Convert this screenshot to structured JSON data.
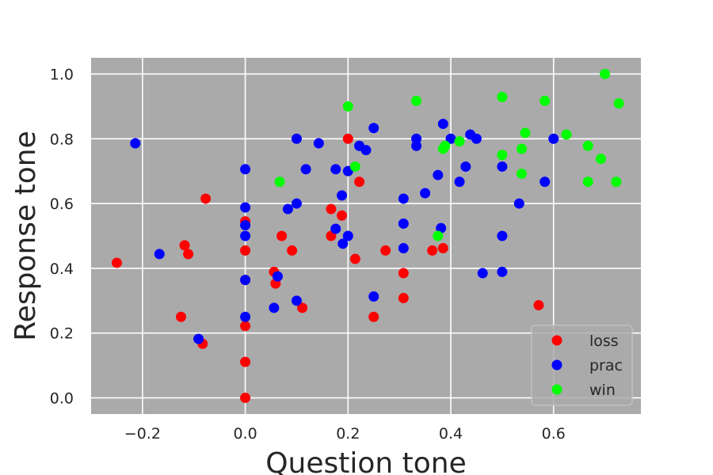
{
  "chart_data": {
    "type": "scatter",
    "xlabel": "Question tone",
    "ylabel": "Response tone",
    "xlim": [
      -0.3,
      0.77
    ],
    "ylim": [
      -0.05,
      1.05
    ],
    "xticks": [
      -0.2,
      0.0,
      0.2,
      0.4,
      0.6
    ],
    "xtick_labels": [
      "−0.2",
      "0.0",
      "0.2",
      "0.4",
      "0.6"
    ],
    "yticks": [
      0.0,
      0.2,
      0.4,
      0.6,
      0.8,
      1.0
    ],
    "ytick_labels": [
      "0.0",
      "0.2",
      "0.4",
      "0.6",
      "0.8",
      "1.0"
    ],
    "grid": true,
    "plot_background": "#aaaaaa",
    "legend_position": "bottom-right",
    "series": [
      {
        "name": "loss",
        "color": "#ff0000",
        "points": [
          [
            -0.25,
            0.417
          ],
          [
            -0.077,
            0.615
          ],
          [
            -0.118,
            0.471
          ],
          [
            -0.111,
            0.444
          ],
          [
            -0.125,
            0.25
          ],
          [
            -0.083,
            0.167
          ],
          [
            0.0,
            0.545
          ],
          [
            0.0,
            0.455
          ],
          [
            0.0,
            0.364
          ],
          [
            0.0,
            0.222
          ],
          [
            0.0,
            0.111
          ],
          [
            0.0,
            0.0
          ],
          [
            0.071,
            0.5
          ],
          [
            0.091,
            0.455
          ],
          [
            0.056,
            0.389
          ],
          [
            0.059,
            0.353
          ],
          [
            0.111,
            0.278
          ],
          [
            0.167,
            0.583
          ],
          [
            0.188,
            0.563
          ],
          [
            0.167,
            0.5
          ],
          [
            0.2,
            0.8
          ],
          [
            0.222,
            0.667
          ],
          [
            0.214,
            0.429
          ],
          [
            0.273,
            0.455
          ],
          [
            0.25,
            0.25
          ],
          [
            0.308,
            0.385
          ],
          [
            0.308,
            0.308
          ],
          [
            0.364,
            0.455
          ],
          [
            0.385,
            0.462
          ],
          [
            0.571,
            0.286
          ]
        ]
      },
      {
        "name": "prac",
        "color": "#0000ff",
        "points": [
          [
            -0.214,
            0.786
          ],
          [
            -0.167,
            0.444
          ],
          [
            -0.091,
            0.182
          ],
          [
            0.0,
            0.706
          ],
          [
            0.0,
            0.588
          ],
          [
            0.0,
            0.533
          ],
          [
            0.0,
            0.5
          ],
          [
            0.0,
            0.25
          ],
          [
            0.0,
            0.364
          ],
          [
            0.063,
            0.375
          ],
          [
            0.056,
            0.278
          ],
          [
            0.1,
            0.8
          ],
          [
            0.143,
            0.786
          ],
          [
            0.118,
            0.706
          ],
          [
            0.083,
            0.583
          ],
          [
            0.1,
            0.6
          ],
          [
            0.1,
            0.3
          ],
          [
            0.176,
            0.706
          ],
          [
            0.2,
            0.7
          ],
          [
            0.188,
            0.625
          ],
          [
            0.176,
            0.522
          ],
          [
            0.2,
            0.5
          ],
          [
            0.19,
            0.476
          ],
          [
            0.222,
            0.778
          ],
          [
            0.235,
            0.765
          ],
          [
            0.25,
            0.833
          ],
          [
            0.25,
            0.313
          ],
          [
            0.333,
            0.8
          ],
          [
            0.333,
            0.778
          ],
          [
            0.308,
            0.615
          ],
          [
            0.308,
            0.538
          ],
          [
            0.308,
            0.462
          ],
          [
            0.35,
            0.632
          ],
          [
            0.375,
            0.688
          ],
          [
            0.381,
            0.524
          ],
          [
            0.385,
            0.846
          ],
          [
            0.4,
            0.8
          ],
          [
            0.429,
            0.714
          ],
          [
            0.417,
            0.667
          ],
          [
            0.438,
            0.813
          ],
          [
            0.45,
            0.8
          ],
          [
            0.462,
            0.385
          ],
          [
            0.5,
            0.714
          ],
          [
            0.5,
            0.5
          ],
          [
            0.5,
            0.389
          ],
          [
            0.533,
            0.6
          ],
          [
            0.583,
            0.667
          ],
          [
            0.6,
            0.8
          ]
        ]
      },
      {
        "name": "win",
        "color": "#00ff00",
        "points": [
          [
            0.067,
            0.667
          ],
          [
            0.2,
            0.9
          ],
          [
            0.214,
            0.714
          ],
          [
            0.333,
            0.917
          ],
          [
            0.375,
            0.5
          ],
          [
            0.385,
            0.769
          ],
          [
            0.389,
            0.778
          ],
          [
            0.417,
            0.792
          ],
          [
            0.5,
            0.929
          ],
          [
            0.5,
            0.75
          ],
          [
            0.538,
            0.769
          ],
          [
            0.538,
            0.692
          ],
          [
            0.545,
            0.818
          ],
          [
            0.583,
            0.917
          ],
          [
            0.625,
            0.813
          ],
          [
            0.667,
            0.778
          ],
          [
            0.667,
            0.667
          ],
          [
            0.692,
            0.738
          ],
          [
            0.7,
            1.0
          ],
          [
            0.722,
            0.667
          ],
          [
            0.727,
            0.909
          ]
        ]
      }
    ]
  }
}
